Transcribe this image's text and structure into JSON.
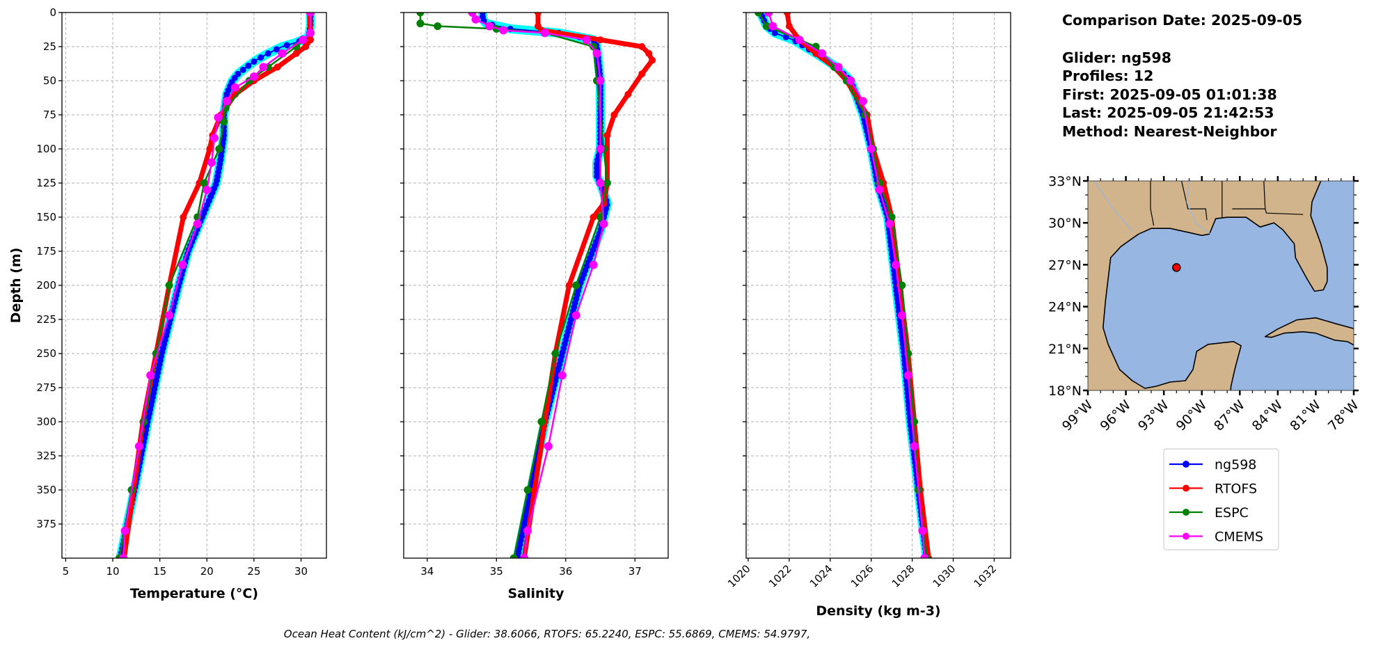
{
  "info": {
    "comparison_date": "Comparison Date: 2025-09-05",
    "glider": "Glider: ng598",
    "profiles": "Profiles: 12",
    "first": "First: 2025-09-05 01:01:38",
    "last": "Last: 2025-09-05 21:42:53",
    "method": "Method: Nearest-Neighbor"
  },
  "footer": "Ocean Heat Content (kJ/cm^2) - Glider: 38.6066,  RTOFS: 65.2240,  ESPC: 55.6869,  CMEMS: 54.9797,",
  "legend": {
    "placement": "below-map",
    "items": [
      {
        "label": "ng598",
        "color": "#0000ff"
      },
      {
        "label": "RTOFS",
        "color": "#ff0000"
      },
      {
        "label": "ESPC",
        "color": "#008000"
      },
      {
        "label": "CMEMS",
        "color": "#ff00ff"
      }
    ]
  },
  "colors": {
    "glider_profiles": "#00ffff",
    "grid": "#b0b0b0"
  },
  "chart_data": [
    {
      "type": "line",
      "xlabel": "Temperature (°C)",
      "ylabel": "Depth (m)",
      "xlim": [
        4.6,
        32.7
      ],
      "ylim": [
        400,
        0
      ],
      "grid": true,
      "xticks": [
        "5",
        "10",
        "15",
        "20",
        "25",
        "30"
      ],
      "yticks": [
        "0",
        "25",
        "50",
        "75",
        "100",
        "125",
        "150",
        "175",
        "200",
        "225",
        "250",
        "275",
        "300",
        "325",
        "350",
        "375"
      ],
      "series": [
        {
          "name": "ng598",
          "depth": [
            0,
            10,
            18,
            22,
            25,
            30,
            35,
            40,
            45,
            50,
            60,
            75,
            90,
            100,
            110,
            125,
            150,
            175,
            200,
            250,
            300,
            350,
            400
          ],
          "values": [
            31.0,
            31.0,
            30.8,
            29.5,
            28.0,
            26.5,
            25.2,
            24.2,
            23.3,
            22.7,
            22.1,
            21.8,
            21.8,
            21.6,
            21.4,
            21.0,
            19.5,
            18.0,
            17.0,
            15.2,
            13.7,
            12.3,
            10.8
          ]
        },
        {
          "name": "RTOFS",
          "depth": [
            0,
            20,
            25,
            30,
            40,
            50,
            60,
            75,
            90,
            100,
            125,
            150,
            200,
            250,
            300,
            350,
            400
          ],
          "values": [
            30.9,
            31.0,
            30.5,
            29.5,
            27.5,
            25.0,
            23.0,
            21.5,
            20.6,
            20.3,
            19.2,
            17.5,
            16.0,
            14.6,
            13.2,
            12.2,
            11.2
          ]
        },
        {
          "name": "ESPC",
          "depth": [
            0,
            15,
            25,
            40,
            50,
            70,
            80,
            100,
            125,
            150,
            200,
            250,
            300,
            350,
            400
          ],
          "values": [
            31.0,
            31.0,
            29.5,
            26.5,
            24.5,
            22.0,
            21.8,
            21.3,
            19.7,
            19.0,
            16.0,
            14.6,
            13.3,
            12.0,
            10.7
          ]
        },
        {
          "name": "CMEMS",
          "depth": [
            0,
            15,
            20,
            30,
            40,
            47,
            55,
            65,
            77,
            92,
            110,
            130,
            155,
            185,
            222,
            266,
            318,
            380,
            400
          ],
          "values": [
            31.0,
            31.0,
            30.2,
            28.0,
            26.0,
            25.0,
            23.0,
            22.1,
            21.2,
            20.8,
            20.5,
            20.0,
            19.0,
            17.4,
            16.0,
            14.0,
            12.8,
            11.3,
            11.1
          ]
        }
      ]
    },
    {
      "type": "line",
      "xlabel": "Salinity",
      "ylabel": "",
      "xlim": [
        33.66,
        37.48
      ],
      "ylim": [
        400,
        0
      ],
      "grid": true,
      "xticks": [
        "34",
        "35",
        "36",
        "37"
      ],
      "series": [
        {
          "name": "ng598",
          "depth": [
            0,
            5,
            8,
            12,
            15,
            20,
            25,
            50,
            75,
            100,
            110,
            120,
            125,
            140,
            160,
            200,
            250,
            300,
            350,
            400
          ],
          "values": [
            34.8,
            34.8,
            34.85,
            35.2,
            35.9,
            36.4,
            36.45,
            36.5,
            36.5,
            36.5,
            36.45,
            36.45,
            36.5,
            36.6,
            36.5,
            36.2,
            35.95,
            35.7,
            35.5,
            35.3
          ]
        },
        {
          "name": "RTOFS",
          "depth": [
            0,
            10,
            13,
            20,
            25,
            30,
            35,
            45,
            60,
            75,
            90,
            125,
            140,
            150,
            200,
            250,
            300,
            350,
            400
          ],
          "values": [
            35.6,
            35.6,
            35.65,
            36.5,
            37.1,
            37.2,
            37.25,
            37.1,
            36.9,
            36.7,
            36.6,
            36.6,
            36.55,
            36.4,
            36.05,
            35.85,
            35.7,
            35.55,
            35.4
          ]
        },
        {
          "name": "ESPC",
          "depth": [
            0,
            8,
            10,
            12,
            15,
            25,
            50,
            100,
            125,
            150,
            200,
            250,
            300,
            350,
            400
          ],
          "values": [
            33.9,
            33.9,
            34.15,
            35.0,
            35.7,
            36.4,
            36.45,
            36.55,
            36.6,
            36.5,
            36.15,
            35.85,
            35.65,
            35.45,
            35.25
          ]
        },
        {
          "name": "CMEMS",
          "depth": [
            0,
            5,
            10,
            13,
            15,
            20,
            30,
            50,
            100,
            125,
            155,
            185,
            222,
            266,
            318,
            380,
            400
          ],
          "values": [
            34.65,
            34.7,
            34.9,
            35.1,
            35.7,
            36.3,
            36.45,
            36.5,
            36.5,
            36.5,
            36.55,
            36.4,
            36.15,
            35.95,
            35.75,
            35.45,
            35.4
          ]
        }
      ]
    },
    {
      "type": "line",
      "xlabel": "Density (kg m-3)",
      "ylabel": "",
      "xlim": [
        1019.9,
        1032.8
      ],
      "ylim": [
        400,
        0
      ],
      "grid": true,
      "xticks": [
        "1020",
        "1022",
        "1024",
        "1026",
        "1028",
        "1030",
        "1032"
      ],
      "series": [
        {
          "name": "ng598",
          "depth": [
            0,
            10,
            15,
            20,
            30,
            40,
            50,
            75,
            100,
            125,
            150,
            200,
            250,
            300,
            350,
            400
          ],
          "values": [
            1020.6,
            1020.9,
            1021.3,
            1022.2,
            1023.3,
            1024.3,
            1025.0,
            1025.6,
            1026.0,
            1026.3,
            1026.8,
            1027.2,
            1027.6,
            1027.9,
            1028.3,
            1028.7
          ]
        },
        {
          "name": "RTOFS",
          "depth": [
            0,
            10,
            20,
            30,
            40,
            50,
            75,
            100,
            125,
            150,
            200,
            250,
            300,
            350,
            400
          ],
          "values": [
            1021.9,
            1022.0,
            1022.5,
            1023.3,
            1024.2,
            1024.8,
            1025.8,
            1026.1,
            1026.6,
            1027.0,
            1027.4,
            1027.8,
            1028.1,
            1028.4,
            1028.8
          ]
        },
        {
          "name": "ESPC",
          "depth": [
            0,
            10,
            25,
            40,
            50,
            75,
            100,
            125,
            150,
            200,
            250,
            300,
            350,
            400
          ],
          "values": [
            1020.5,
            1020.9,
            1023.3,
            1024.2,
            1024.8,
            1025.7,
            1026.1,
            1026.4,
            1027.0,
            1027.5,
            1027.8,
            1028.1,
            1028.3,
            1028.7
          ]
        },
        {
          "name": "CMEMS",
          "depth": [
            0,
            10,
            20,
            30,
            40,
            50,
            65,
            100,
            130,
            155,
            185,
            222,
            266,
            318,
            380,
            400
          ],
          "values": [
            1021.0,
            1021.2,
            1022.5,
            1023.6,
            1024.4,
            1025.0,
            1025.6,
            1026.0,
            1026.4,
            1026.9,
            1027.2,
            1027.5,
            1027.8,
            1028.1,
            1028.5,
            1028.6
          ]
        }
      ]
    }
  ],
  "map": {
    "lon_range": [
      -99,
      -78
    ],
    "lat_range": [
      18,
      33
    ],
    "lat_ticks": [
      "18°N",
      "21°N",
      "24°N",
      "27°N",
      "30°N",
      "33°N"
    ],
    "lon_ticks": [
      "99°W",
      "96°W",
      "93°W",
      "90°W",
      "87°W",
      "84°W",
      "81°W",
      "78°W"
    ],
    "glider_location": {
      "lat": 26.8,
      "lon": -92.0
    },
    "colors": {
      "ocean": "#97b6e1",
      "land": "#d2b48c",
      "marker": "#ff0000",
      "rivers": "#97b6e1"
    }
  }
}
